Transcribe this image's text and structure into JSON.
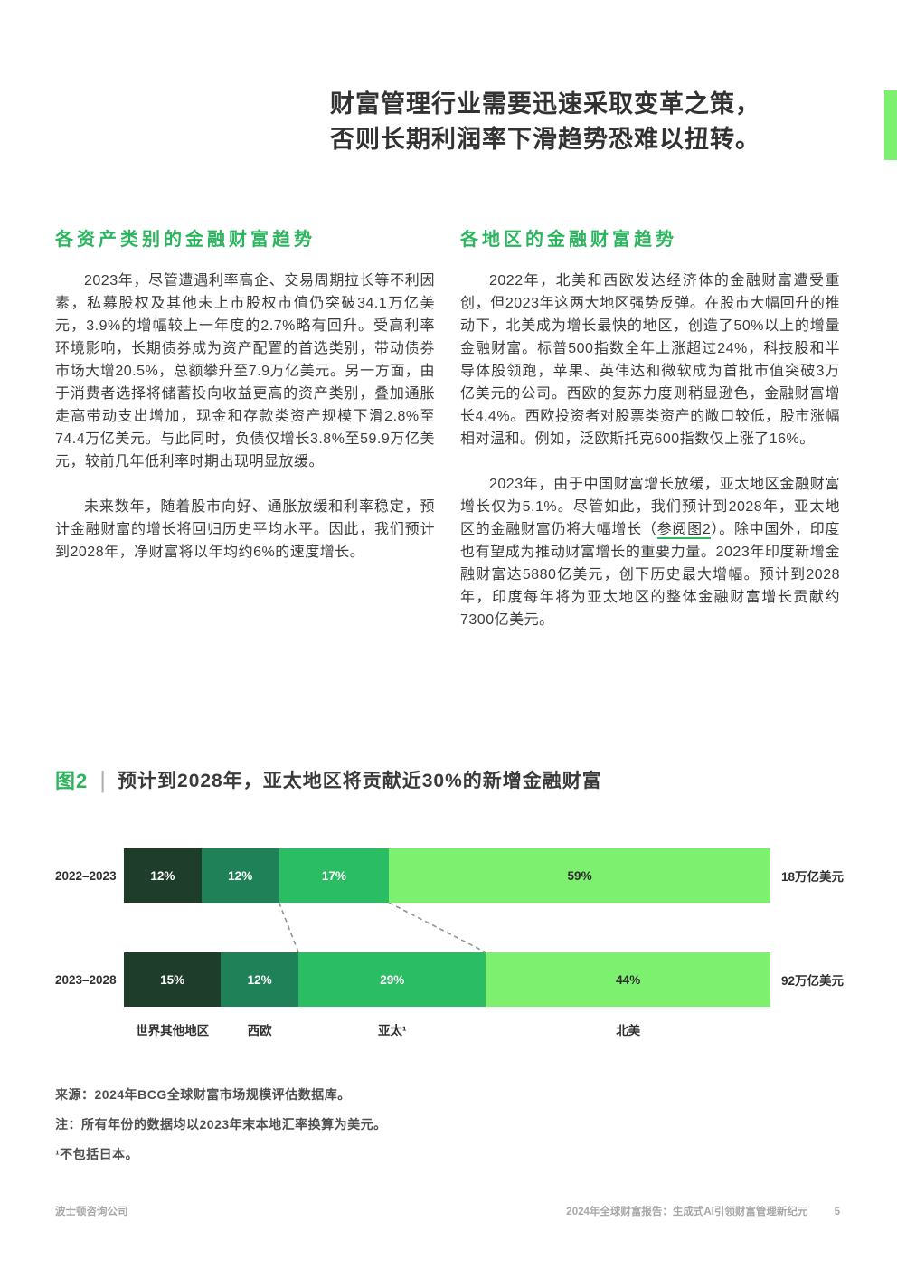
{
  "headline": {
    "line1": "财富管理行业需要迅速采取变革之策，",
    "line2": "否则长期利润率下滑趋势恐难以扭转。"
  },
  "accent_color": "#7df06f",
  "brand_green": "#2cb45f",
  "columns": {
    "left": {
      "heading": "各资产类别的金融财富趋势",
      "para1": "2023年，尽管遭遇利率高企、交易周期拉长等不利因素，私募股权及其他未上市股权市值仍突破34.1万亿美元，3.9%的增幅较上一年度的2.7%略有回升。受高利率环境影响，长期债券成为资产配置的首选类别，带动债券市场大增20.5%，总额攀升至7.9万亿美元。另一方面，由于消费者选择将储蓄投向收益更高的资产类别，叠加通胀走高带动支出增加，现金和存款类资产规模下滑2.8%至74.4万亿美元。与此同时，负债仅增长3.8%至59.9万亿美元，较前几年低利率时期出现明显放缓。",
      "para2": "未来数年，随着股市向好、通胀放缓和利率稳定，预计金融财富的增长将回归历史平均水平。因此，我们预计到2028年，净财富将以年均约6%的速度增长。"
    },
    "right": {
      "heading": "各地区的金融财富趋势",
      "para1": "2022年，北美和西欧发达经济体的金融财富遭受重创，但2023年这两大地区强势反弹。在股市大幅回升的推动下，北美成为增长最快的地区，创造了50%以上的增量金融财富。标普500指数全年上涨超过24%，科技股和半导体股领跑，苹果、英伟达和微软成为首批市值突破3万亿美元的公司。西欧的复苏力度则稍显逊色，金融财富增长4.4%。西欧投资者对股票类资产的敞口较低，股市涨幅相对温和。例如，泛欧斯托克600指数仅上涨了16%。",
      "para2_before": "2023年，由于中国财富增长放缓，亚太地区金融财富增长仅为5.1%。尽管如此，我们预计到2028年，亚太地区的金融财富仍将大幅增长（",
      "para2_link": "参阅图2",
      "para2_after": "）。除中国外，印度也有望成为推动财富增长的重要力量。2023年印度新增金融财富达5880亿美元，创下历史最大增幅。预计到2028年，印度每年将为亚太地区的整体金融财富增长贡献约7300亿美元。"
    }
  },
  "figure": {
    "tag": "图2",
    "separator": "|",
    "title": "预计到2028年，亚太地区将贡献近30%的新增金融财富"
  },
  "chart_data": {
    "type": "bar",
    "orientation": "horizontal-stacked",
    "title": "预计到2028年，亚太地区将贡献近30%的新增金融财富",
    "categories": [
      "世界其他地区",
      "西欧",
      "亚太¹",
      "北美"
    ],
    "series_colors": [
      "#1e3d2a",
      "#1f8158",
      "#2abd64",
      "#7df06f"
    ],
    "value_label_colors": [
      "#ffffff",
      "#ffffff",
      "#ffffff",
      "#2d2d2d"
    ],
    "rows": [
      {
        "label": "2022–2023",
        "values": [
          12,
          12,
          17,
          59
        ],
        "value_labels": [
          "12%",
          "12%",
          "17%",
          "59%"
        ],
        "total": "18万亿美元"
      },
      {
        "label": "2023–2028",
        "values": [
          15,
          12,
          29,
          44
        ],
        "value_labels": [
          "15%",
          "12%",
          "29%",
          "44%"
        ],
        "total": "92万亿美元"
      }
    ],
    "connector_boundaries": [
      1,
      2
    ],
    "connector_style": "dashed",
    "connector_color": "#8f9494",
    "legend_position": "below",
    "grid": false
  },
  "notes": {
    "source": "来源：2024年BCG全球财富市场规模评估数据库。",
    "note": "注：所有年份的数据均以2023年末本地汇率换算为美元。",
    "footnote": "¹不包括日本。"
  },
  "footer": {
    "left": "波士顿咨询公司",
    "right": "2024年全球财富报告：生成式AI引领财富管理新纪元",
    "page": "5"
  }
}
